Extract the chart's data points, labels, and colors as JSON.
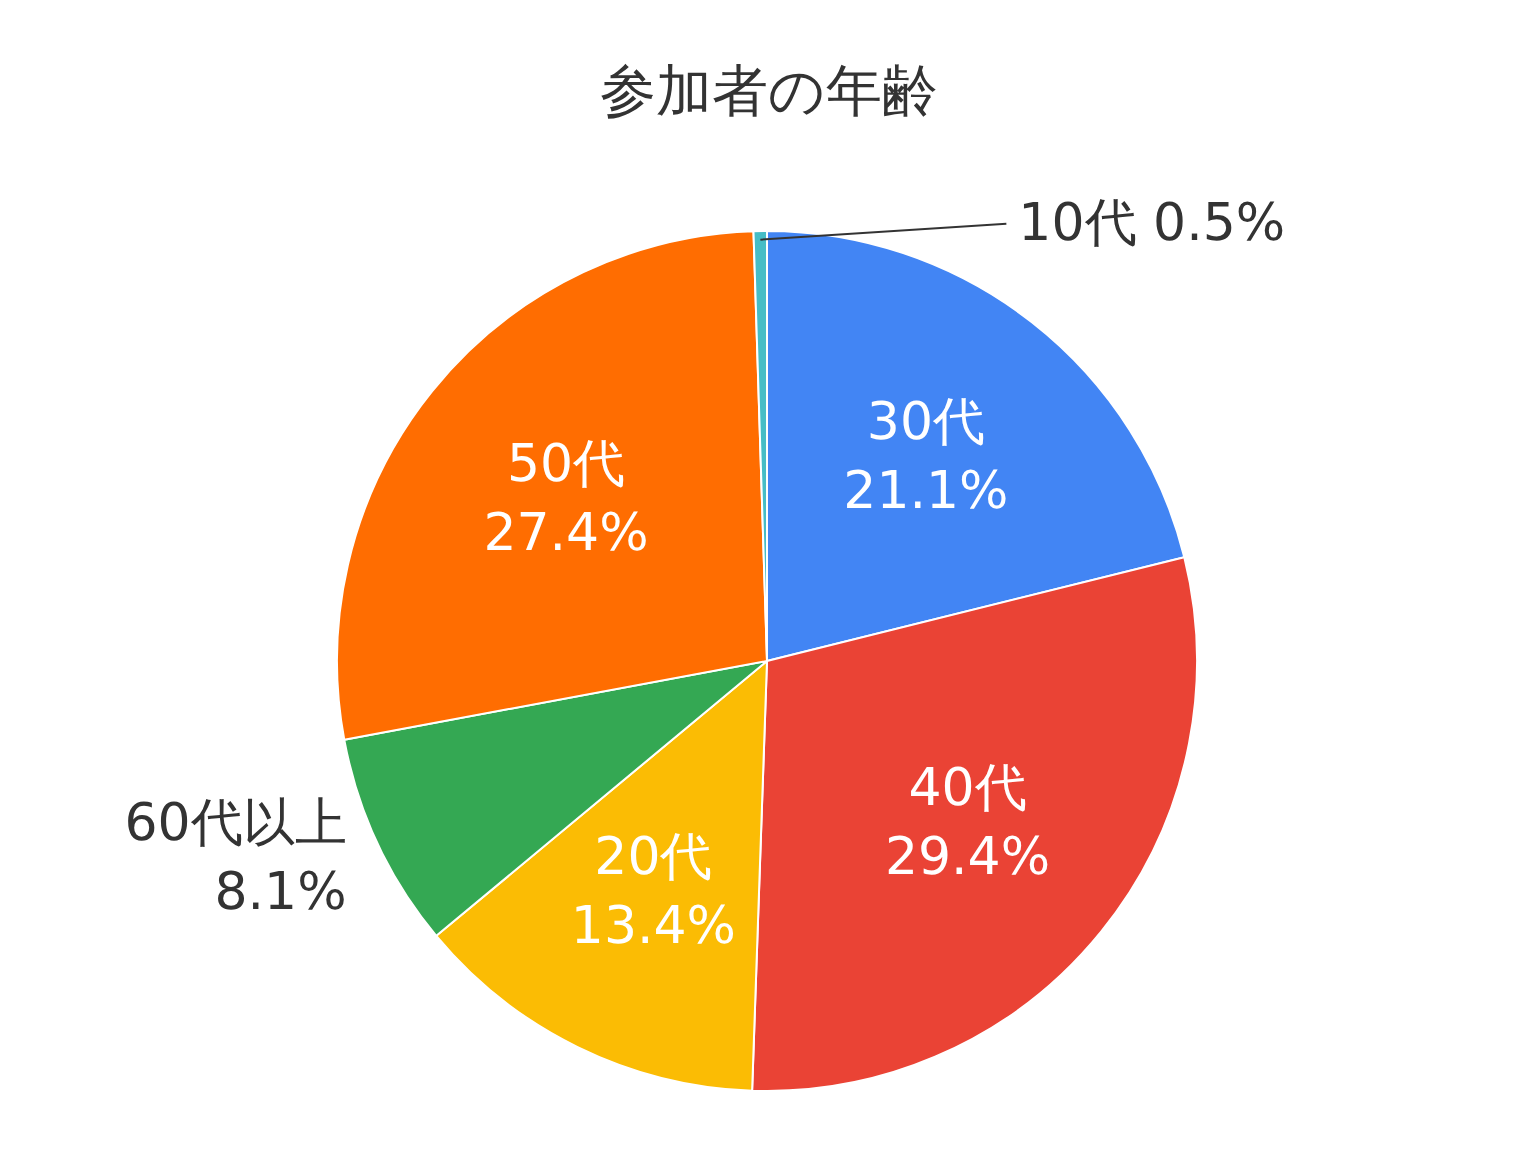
{
  "chart_data": {
    "type": "pie",
    "title": "参加者の年齢",
    "categories": [
      "30代",
      "40代",
      "20代",
      "60代以上",
      "50代",
      "10代"
    ],
    "values": [
      21.1,
      29.4,
      13.4,
      8.1,
      27.4,
      0.5
    ],
    "value_labels": [
      "21.1%",
      "29.4%",
      "13.4%",
      "8.1%",
      "27.4%",
      "0.5%"
    ],
    "colors": [
      "#4285f4",
      "#ea4335",
      "#fbbc04",
      "#34a853",
      "#ff6d01",
      "#46bdc6"
    ]
  }
}
